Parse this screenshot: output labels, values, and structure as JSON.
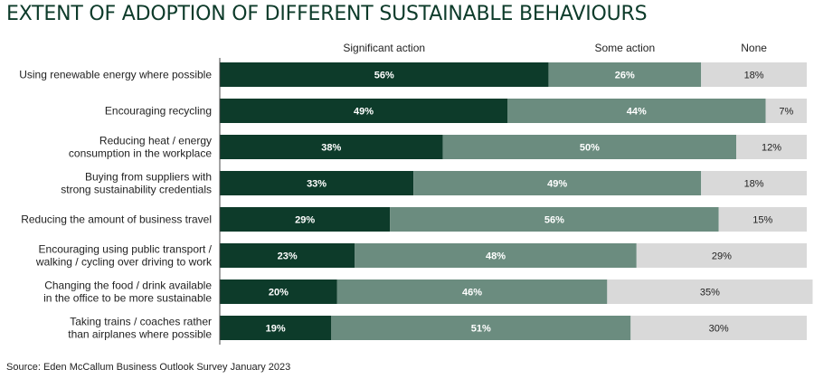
{
  "chart_data": {
    "type": "bar",
    "orientation": "horizontal",
    "stacked": true,
    "title": "EXTENT OF ADOPTION OF DIFFERENT SUSTAINABLE BEHAVIOURS",
    "source": "Source: Eden McCallum Business Outlook Survey January 2023",
    "xlim": [
      0,
      100
    ],
    "legend_placement": "top",
    "grid": false,
    "categories": [
      [
        "Using renewable energy where possible"
      ],
      [
        "Encouraging recycling"
      ],
      [
        "Reducing heat / energy",
        "consumption in the workplace"
      ],
      [
        "Buying from suppliers with",
        "strong sustainability credentials"
      ],
      [
        "Reducing the amount of business travel"
      ],
      [
        "Encouraging using public transport /",
        "walking / cycling over driving to work"
      ],
      [
        "Changing the food / drink available",
        "in the office to be more sustainable"
      ],
      [
        "Taking trains / coaches rather",
        "than airplanes where possible"
      ]
    ],
    "series": [
      {
        "name": "Significant action",
        "color": "#0d3b2a",
        "label_color": "#ffffff",
        "values": [
          56,
          49,
          38,
          33,
          29,
          23,
          20,
          19
        ],
        "labels": [
          "56%",
          "49%",
          "38%",
          "33%",
          "29%",
          "23%",
          "20%",
          "19%"
        ]
      },
      {
        "name": "Some action",
        "color": "#6b8c7f",
        "label_color": "#ffffff",
        "values": [
          26,
          44,
          50,
          49,
          56,
          48,
          46,
          51
        ],
        "labels": [
          "26%",
          "44%",
          "50%",
          "49%",
          "56%",
          "48%",
          "46%",
          "51%"
        ]
      },
      {
        "name": "None",
        "color": "#d9d9d9",
        "label_color": "#222222",
        "values": [
          18,
          7,
          12,
          18,
          15,
          29,
          35,
          30
        ],
        "labels": [
          "18%",
          "7%",
          "12%",
          "18%",
          "15%",
          "29%",
          "35%",
          "30%"
        ]
      }
    ]
  }
}
